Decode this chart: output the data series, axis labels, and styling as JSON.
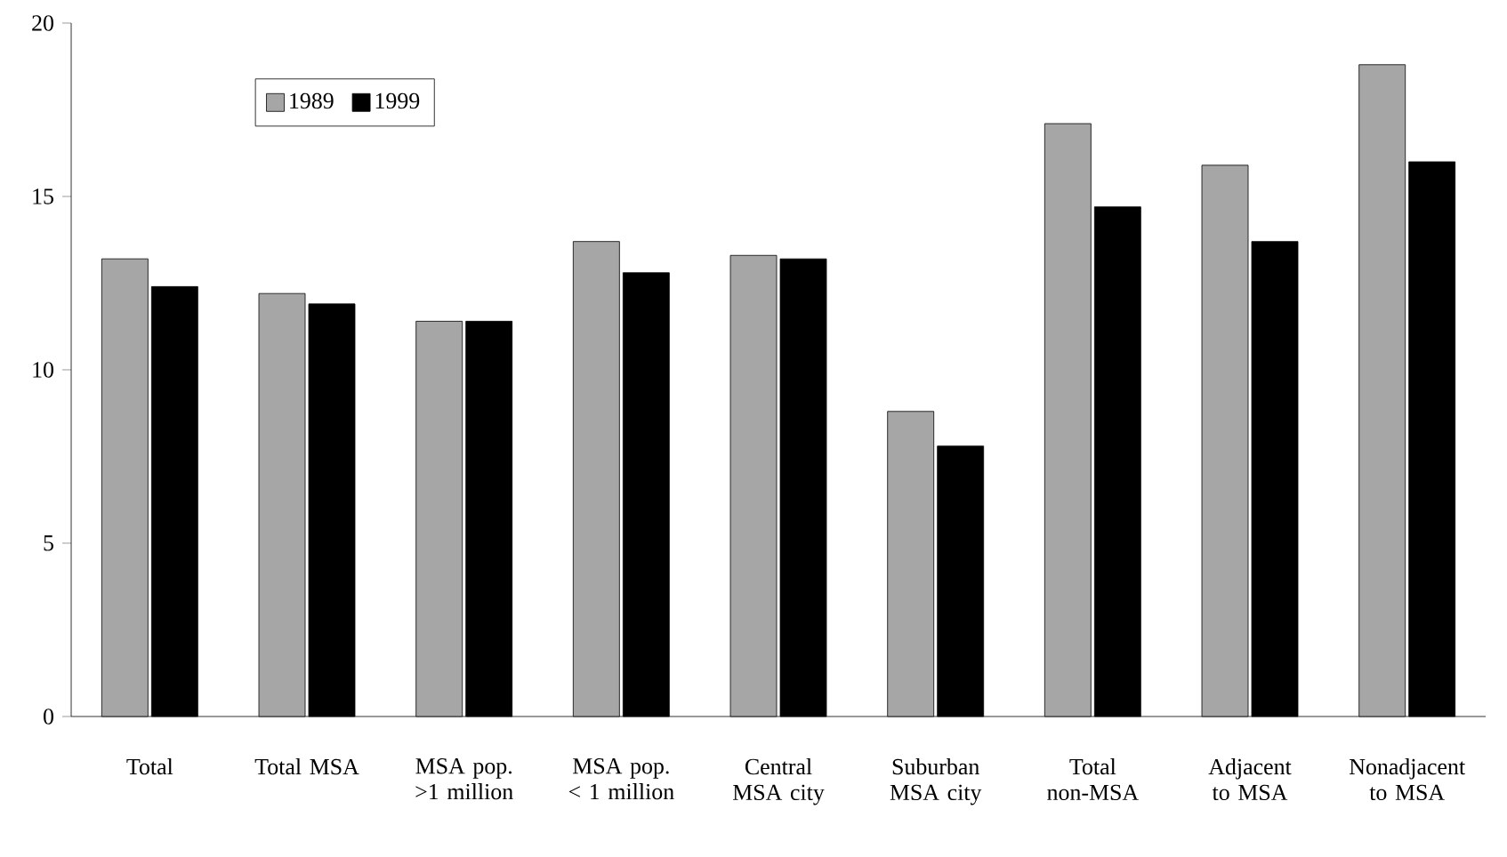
{
  "chart_data": {
    "type": "bar",
    "categories": [
      "Total",
      "Total MSA",
      "MSA pop. >1 million",
      "MSA pop. < 1 million",
      "Central MSA city",
      "Suburban MSA city",
      "Total non-MSA",
      "Adjacent to MSA",
      "Nonadjacent to MSA"
    ],
    "series": [
      {
        "name": "1989",
        "color": "#a6a6a6",
        "values": [
          13.2,
          12.2,
          11.4,
          13.7,
          13.3,
          8.8,
          17.1,
          15.9,
          18.8
        ]
      },
      {
        "name": "1999",
        "color": "#000000",
        "values": [
          12.4,
          11.9,
          11.4,
          12.8,
          13.2,
          7.8,
          14.7,
          13.7,
          16.0
        ]
      }
    ],
    "ylim": [
      0,
      20
    ],
    "yticks": [
      0,
      5,
      10,
      15,
      20
    ],
    "grid": false,
    "legend": "top left"
  }
}
